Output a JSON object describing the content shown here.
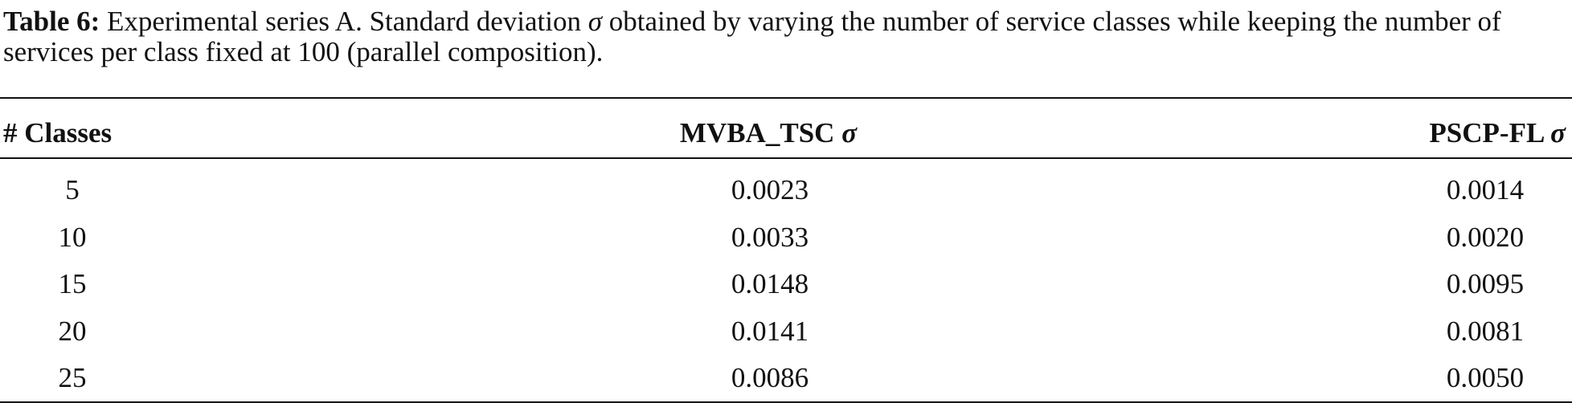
{
  "caption": {
    "label": "Table 6:",
    "text_before": "Experimental series A. Standard deviation",
    "symbol": "σ",
    "text_after": "obtained by varying the number of service classes while keeping the number of services per class fixed at 100 (parallel composition)."
  },
  "table": {
    "header": [
      {
        "text": "# Classes"
      },
      {
        "text": "MVBA_TSC",
        "symbol": "σ"
      },
      {
        "text": "PSCP-FL",
        "symbol": "σ"
      }
    ],
    "rows": [
      [
        "5",
        "0.0023",
        "0.0014"
      ],
      [
        "10",
        "0.0033",
        "0.0020"
      ],
      [
        "15",
        "0.0148",
        "0.0095"
      ],
      [
        "20",
        "0.0141",
        "0.0081"
      ],
      [
        "25",
        "0.0086",
        "0.0050"
      ]
    ]
  }
}
